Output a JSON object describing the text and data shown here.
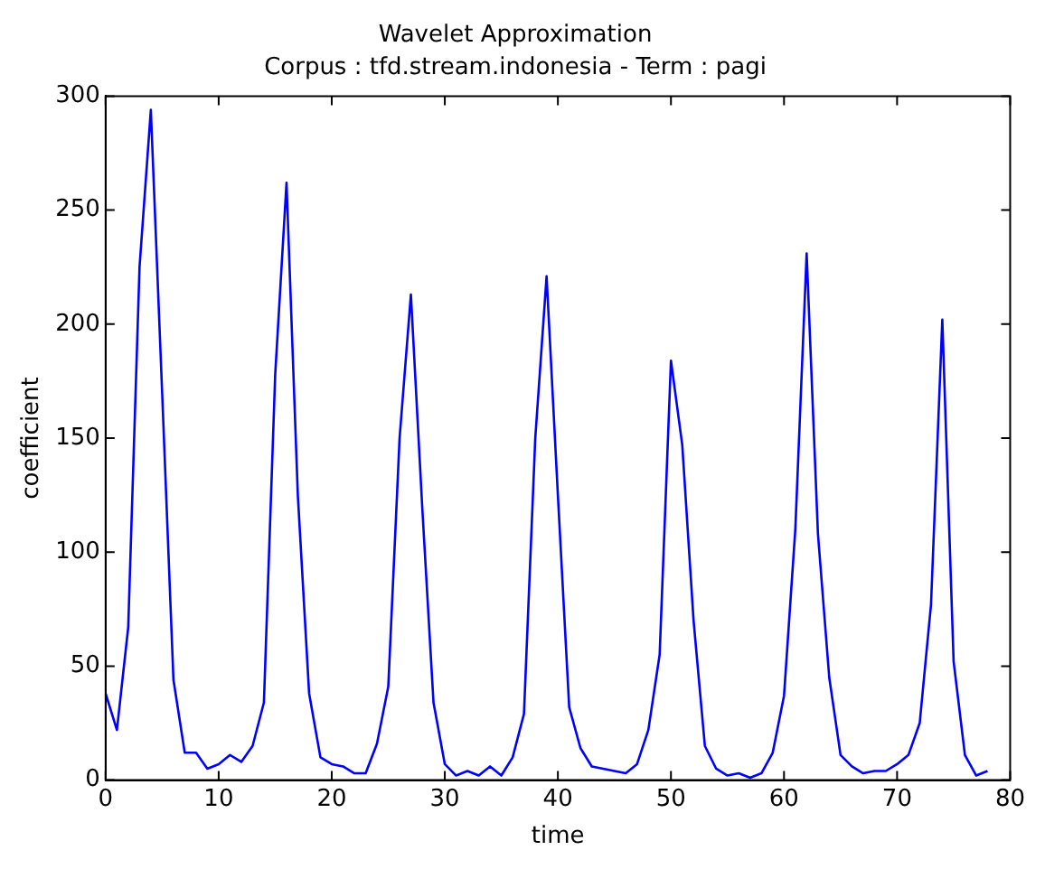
{
  "chart_data": {
    "type": "line",
    "title": "Wavelet Approximation",
    "subtitle": "Corpus : tfd.stream.indonesia - Term : pagi",
    "xlabel": "time",
    "ylabel": "coefficient",
    "x": [
      0,
      1,
      2,
      3,
      4,
      5,
      6,
      7,
      8,
      9,
      10,
      11,
      12,
      13,
      14,
      15,
      16,
      17,
      18,
      19,
      20,
      21,
      22,
      23,
      24,
      25,
      26,
      27,
      28,
      29,
      30,
      31,
      32,
      33,
      34,
      35,
      36,
      37,
      38,
      39,
      40,
      41,
      42,
      43,
      44,
      45,
      46,
      47,
      48,
      49,
      50,
      51,
      52,
      53,
      54,
      55,
      56,
      57,
      58,
      59,
      60,
      61,
      62,
      63,
      64,
      65,
      66,
      67,
      68,
      69,
      70,
      71,
      72,
      73,
      74,
      75,
      76,
      77,
      78
    ],
    "series": [
      {
        "color": "#0000ff",
        "values": [
          38,
          22,
          67,
          225,
          294,
          170,
          44,
          12,
          12,
          5,
          7,
          11,
          8,
          15,
          34,
          178,
          262,
          125,
          38,
          10,
          7,
          6,
          3,
          3,
          16,
          41,
          150,
          213,
          120,
          34,
          7,
          2,
          4,
          2,
          6,
          2,
          10,
          29,
          150,
          221,
          125,
          32,
          14,
          6,
          5,
          4,
          3,
          7,
          22,
          55,
          184,
          147,
          70,
          15,
          5,
          2,
          3,
          1,
          3,
          12,
          37,
          110,
          231,
          108,
          45,
          11,
          6,
          3,
          4,
          4,
          7,
          11,
          25,
          77,
          202,
          52,
          11,
          2,
          4
        ]
      }
    ],
    "xlim": [
      0,
      80
    ],
    "xticks": [
      0,
      10,
      20,
      30,
      40,
      50,
      60,
      70,
      80
    ],
    "ylim": [
      0,
      300
    ],
    "yticks": [
      0,
      50,
      100,
      150,
      200,
      250,
      300
    ],
    "grid": false,
    "legend": false,
    "marker": "none",
    "line_style": "solid"
  }
}
